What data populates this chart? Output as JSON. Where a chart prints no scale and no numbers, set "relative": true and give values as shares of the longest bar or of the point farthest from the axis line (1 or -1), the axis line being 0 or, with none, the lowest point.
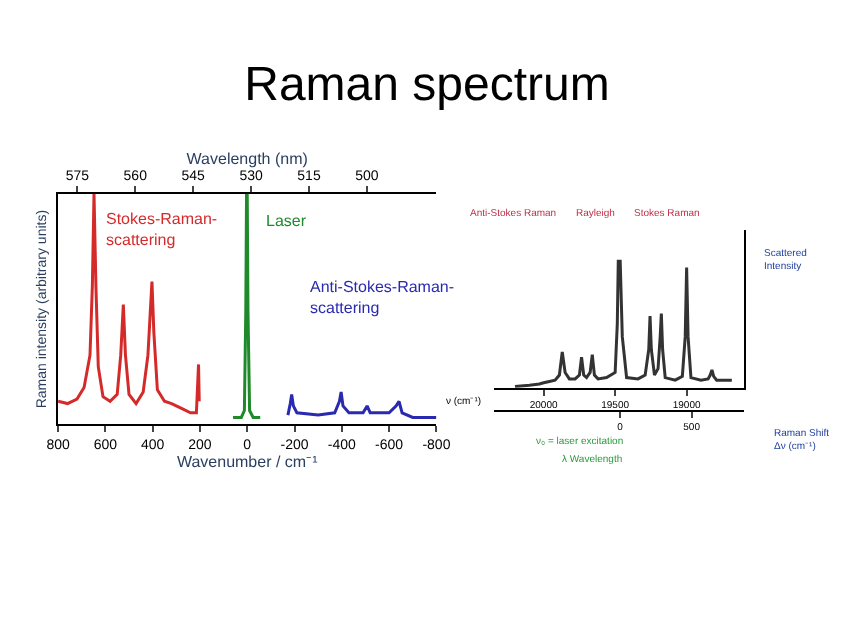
{
  "chart_data": [
    {
      "type": "line",
      "title": "Raman spectrum",
      "relative": true,
      "xlabel": "Wavenumber / cm⁻¹",
      "ylabel": "Raman intensity (arbitrary units)",
      "x2label": "Wavelength (nm)",
      "xlim": [
        800,
        -800
      ],
      "xticks": [
        800,
        600,
        400,
        200,
        0,
        -200,
        -400,
        -600,
        -800
      ],
      "x2lim": [
        580,
        482
      ],
      "x2ticks": [
        575,
        560,
        545,
        530,
        515,
        500
      ],
      "series": [
        {
          "name": "Stokes-Raman-scattering",
          "color": "#d42a2a",
          "x": [
            800,
            760,
            720,
            690,
            665,
            655,
            648,
            640,
            630,
            610,
            580,
            550,
            535,
            524,
            515,
            500,
            470,
            440,
            420,
            403,
            395,
            380,
            350,
            320,
            280,
            240,
            215,
            206,
            203
          ],
          "values": [
            0.1,
            0.09,
            0.11,
            0.16,
            0.3,
            0.6,
            1.0,
            0.6,
            0.25,
            0.12,
            0.1,
            0.13,
            0.3,
            0.52,
            0.3,
            0.13,
            0.09,
            0.14,
            0.3,
            0.62,
            0.4,
            0.15,
            0.1,
            0.09,
            0.07,
            0.05,
            0.05,
            0.26,
            0.1
          ]
        },
        {
          "name": "Laser",
          "color": "#1f8a2a",
          "x": [
            60,
            25,
            12,
            6,
            3,
            0,
            -3,
            -10,
            -25,
            -55
          ],
          "values": [
            0.03,
            0.03,
            0.06,
            0.5,
            1.0,
            1.0,
            0.5,
            0.06,
            0.03,
            0.03
          ]
        },
        {
          "name": "Anti-Stokes-Raman-scattering",
          "color": "#2a2ab0",
          "x": [
            -172,
            -182,
            -188,
            -195,
            -210,
            -300,
            -370,
            -390,
            -397,
            -405,
            -430,
            -490,
            -507,
            -520,
            -600,
            -630,
            -642,
            -655,
            -700,
            -800
          ],
          "values": [
            0.04,
            0.09,
            0.13,
            0.08,
            0.05,
            0.04,
            0.05,
            0.1,
            0.14,
            0.08,
            0.05,
            0.05,
            0.08,
            0.05,
            0.05,
            0.08,
            0.1,
            0.05,
            0.03,
            0.03
          ]
        }
      ]
    },
    {
      "type": "line",
      "relative": true,
      "xlabel": "ν (cm⁻¹)",
      "ylabel": "Scattered Intensity",
      "x2label": "Raman Shift Δν (cm⁻¹)",
      "xlim": [
        20350,
        18600
      ],
      "xticks": [
        20000,
        19500,
        19000
      ],
      "x2lim": [
        -885,
        865
      ],
      "x2ticks": [
        0,
        500
      ],
      "annotations": [
        "Anti-Stokes Raman",
        "Rayleigh",
        "Stokes Raman",
        "ν₀ = laser excitation",
        "λ Wavelength"
      ],
      "series": [
        {
          "color": "#333333",
          "x": [
            20200,
            20100,
            20030,
            20000,
            19960,
            19920,
            19890,
            19870,
            19850,
            19820,
            19780,
            19750,
            19735,
            19720,
            19700,
            19675,
            19660,
            19645,
            19620,
            19560,
            19500,
            19485,
            19478,
            19472,
            19465,
            19450,
            19420,
            19340,
            19290,
            19265,
            19256,
            19247,
            19225,
            19200,
            19185,
            19177,
            19168,
            19150,
            19080,
            19030,
            19010,
            19000,
            18990,
            18970,
            18900,
            18850,
            18835,
            18823,
            18811,
            18790,
            18684
          ],
          "values": [
            0.01,
            0.02,
            0.03,
            0.04,
            0.05,
            0.06,
            0.1,
            0.28,
            0.12,
            0.07,
            0.07,
            0.1,
            0.24,
            0.1,
            0.08,
            0.12,
            0.26,
            0.1,
            0.07,
            0.08,
            0.12,
            0.5,
            1.0,
            0.9,
            1.0,
            0.4,
            0.08,
            0.07,
            0.1,
            0.3,
            0.56,
            0.3,
            0.1,
            0.15,
            0.4,
            0.58,
            0.3,
            0.08,
            0.06,
            0.09,
            0.4,
            0.94,
            0.4,
            0.08,
            0.06,
            0.07,
            0.1,
            0.14,
            0.09,
            0.06,
            0.06
          ]
        }
      ]
    }
  ]
}
